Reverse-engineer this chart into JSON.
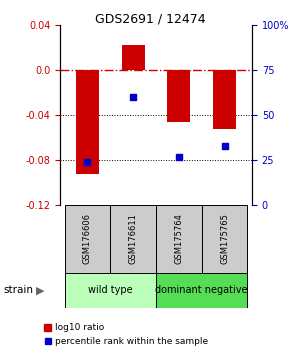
{
  "title": "GDS2691 / 12474",
  "samples": [
    "GSM176606",
    "GSM176611",
    "GSM175764",
    "GSM175765"
  ],
  "log10_ratio": [
    -0.092,
    0.022,
    -0.046,
    -0.052
  ],
  "percentile_rank": [
    24,
    60,
    27,
    33
  ],
  "ylim_left": [
    -0.12,
    0.04
  ],
  "ylim_right": [
    0,
    100
  ],
  "yticks_left": [
    -0.12,
    -0.08,
    -0.04,
    0.0,
    0.04
  ],
  "yticks_right": [
    0,
    25,
    50,
    75,
    100
  ],
  "ytick_labels_right": [
    "0",
    "25",
    "50",
    "75",
    "100%"
  ],
  "bar_color": "#cc0000",
  "dot_color": "#0000cc",
  "hline_color_zero": "#cc0000",
  "groups": [
    {
      "label": "wild type",
      "samples": [
        0,
        1
      ],
      "color": "#bbffbb"
    },
    {
      "label": "dominant negative",
      "samples": [
        2,
        3
      ],
      "color": "#55dd55"
    }
  ],
  "strain_label": "strain",
  "legend_bar_label": "log10 ratio",
  "legend_dot_label": "percentile rank within the sample",
  "background_color": "#ffffff",
  "sample_box_color": "#cccccc",
  "bar_width": 0.5
}
